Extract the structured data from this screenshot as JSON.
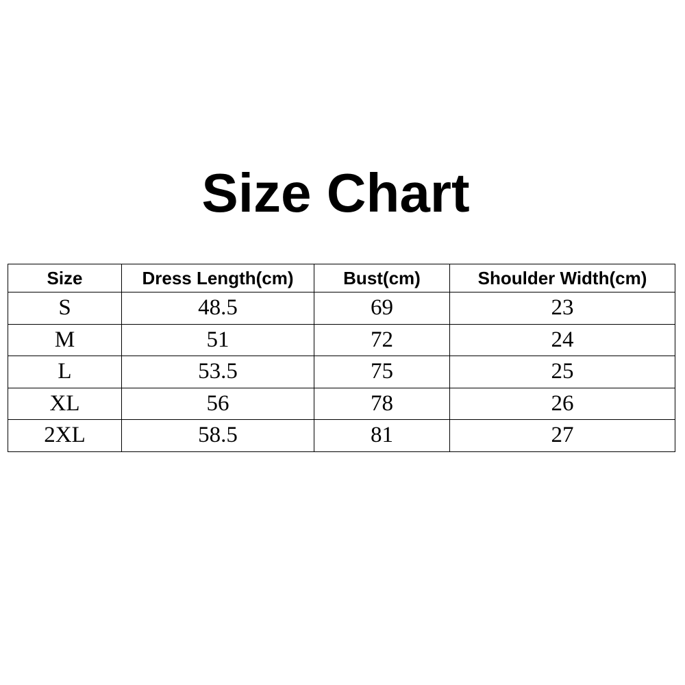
{
  "title": "Size Chart",
  "table": {
    "headers": [
      "Size",
      "Dress Length(cm)",
      "Bust(cm)",
      "Shoulder Width(cm)"
    ],
    "rows": [
      [
        "S",
        "48.5",
        "69",
        "23"
      ],
      [
        "M",
        "51",
        "72",
        "24"
      ],
      [
        "L",
        "53.5",
        "75",
        "25"
      ],
      [
        "XL",
        "56",
        "78",
        "26"
      ],
      [
        "2XL",
        "58.5",
        "81",
        "27"
      ]
    ]
  }
}
